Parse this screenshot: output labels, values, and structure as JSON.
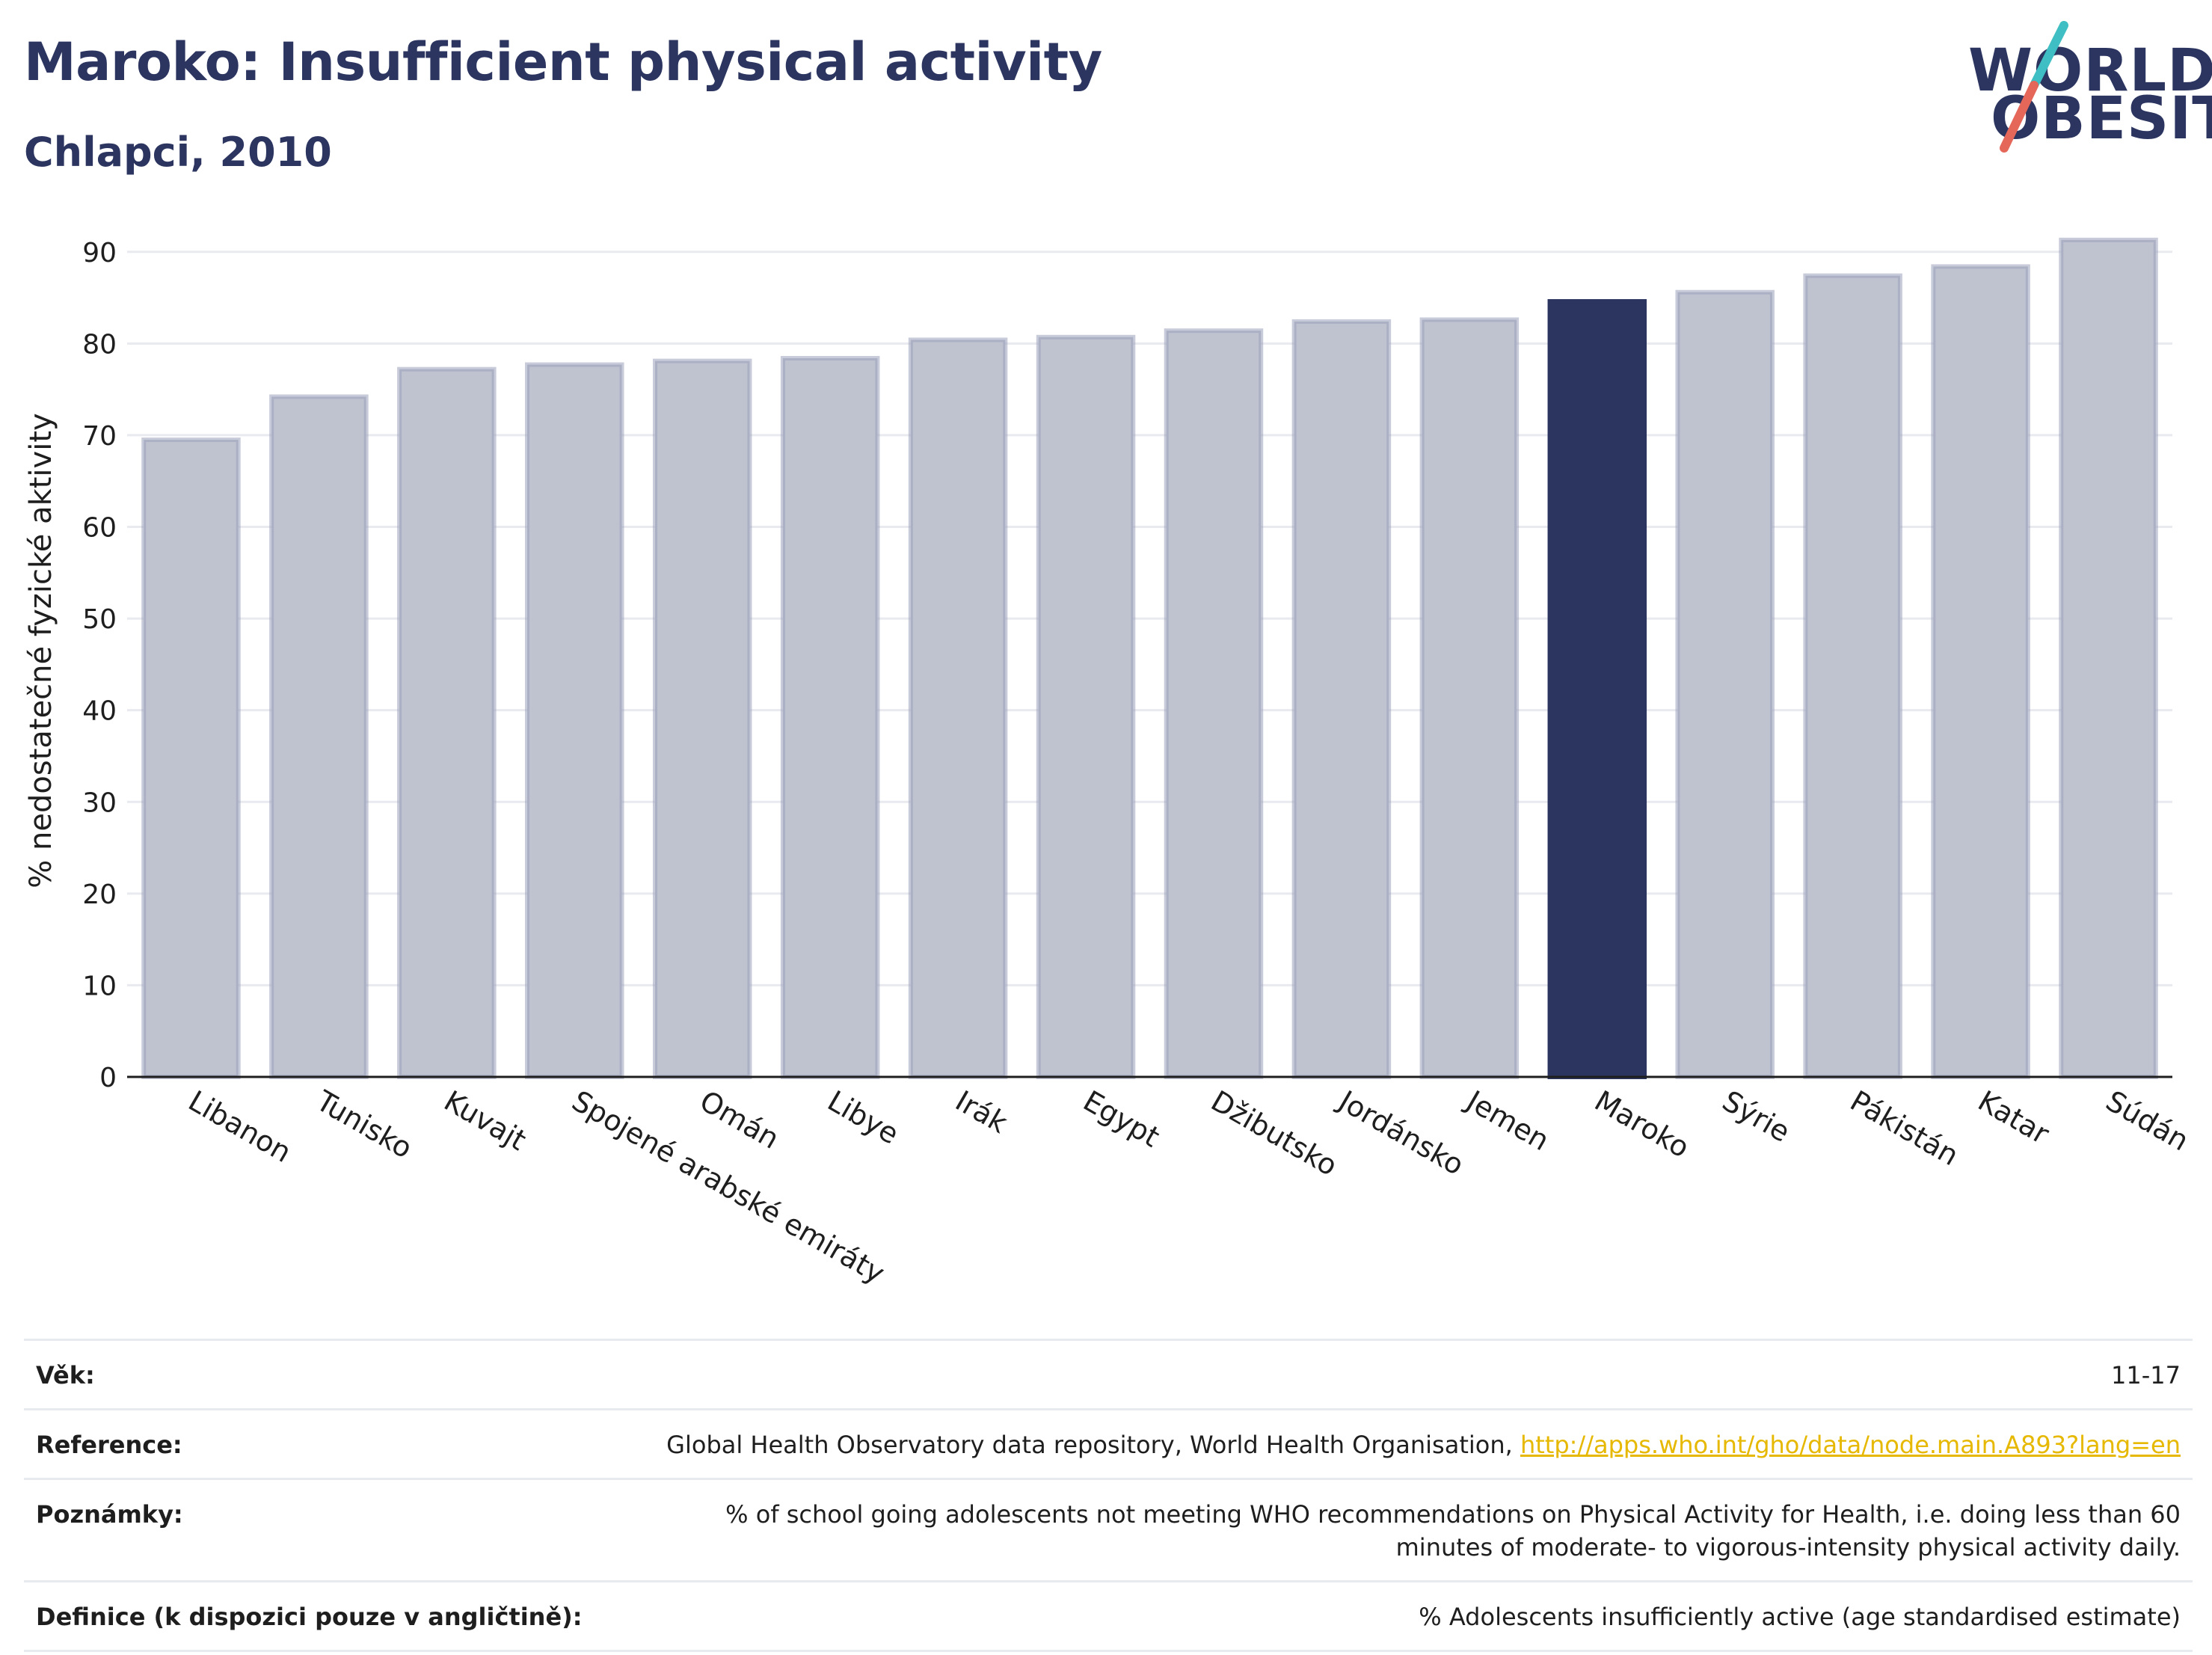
{
  "header": {
    "title": "Maroko: Insufficient physical activity",
    "subtitle": "Chlapci, 2010"
  },
  "logo": {
    "line1": "WORLD",
    "line2": "OBESITY"
  },
  "colors": {
    "highlight": "#2b3560",
    "bar": "#bfc3d0",
    "bar_edge": "#9aa1ba",
    "grid": "#e8eaef",
    "logo_slash_teal": "#3fbfc3",
    "logo_slash_red": "#e4675a"
  },
  "chart_data": {
    "type": "bar",
    "ylabel": "% nedostatečné fyzické aktivity",
    "ylim": [
      0,
      93
    ],
    "yticks": [
      0,
      10,
      20,
      30,
      40,
      50,
      60,
      70,
      80,
      90
    ],
    "grid": true,
    "highlight_category": "Maroko",
    "categories": [
      "Libanon",
      "Tunisko",
      "Kuvajt",
      "Spojené arabské emiráty",
      "Omán",
      "Libye",
      "Irák",
      "Egypt",
      "Džibutsko",
      "Jordánsko",
      "Jemen",
      "Maroko",
      "Sýrie",
      "Pákistán",
      "Katar",
      "Súdán"
    ],
    "values": [
      69.5,
      74.2,
      77.2,
      77.7,
      78.1,
      78.4,
      80.4,
      80.7,
      81.4,
      82.4,
      82.6,
      84.6,
      85.6,
      87.4,
      88.4,
      91.3
    ]
  },
  "footer": {
    "rows": [
      {
        "label": "Věk:",
        "value": "11-17"
      },
      {
        "label": "Reference:",
        "value": "Global Health Observatory data repository, World Health Organisation, ",
        "link": "http://apps.who.int/gho/data/node.main.A893?lang=en"
      },
      {
        "label": "Poznámky:",
        "value": "% of school going adolescents not meeting WHO recommendations on Physical Activity for Health, i.e. doing less than 60 minutes of moderate- to vigorous-intensity physical activity daily."
      },
      {
        "label": "Definice (k dispozici pouze v angličtině):",
        "value": "% Adolescents insufficiently active (age standardised estimate)"
      }
    ]
  }
}
